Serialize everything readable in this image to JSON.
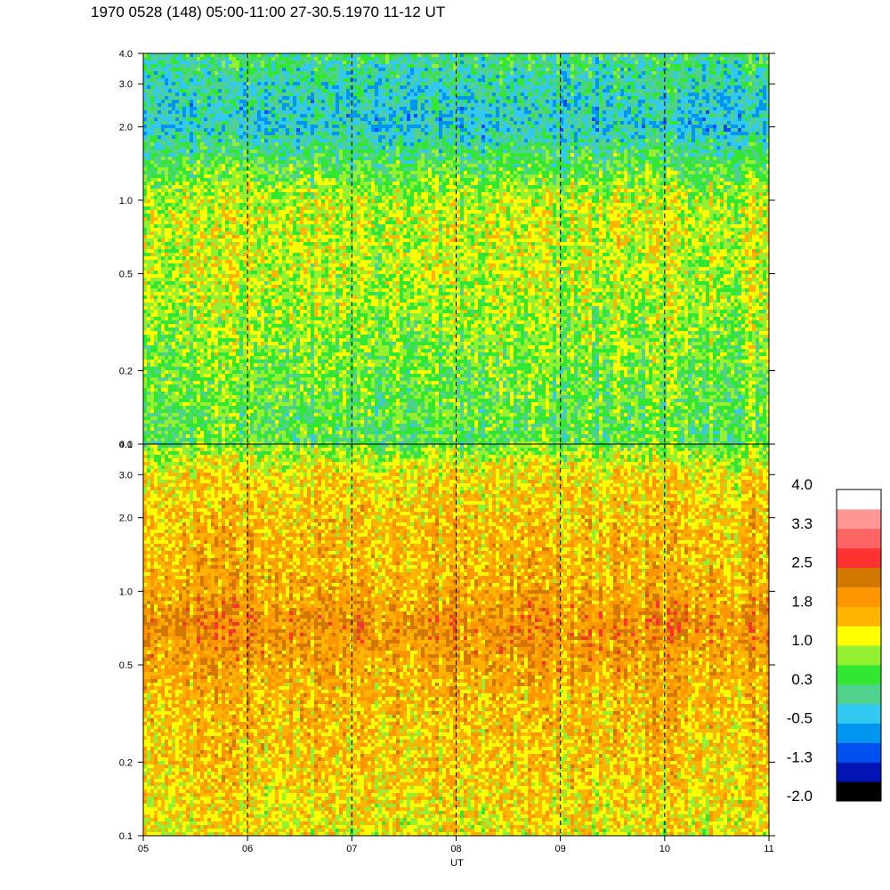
{
  "chart_data": {
    "type": "heatmap",
    "title": "1970 0528 (148) 05:00-11:00 27-30.5.1970  11-12 UT",
    "xlabel": "UT",
    "x_ticks": [
      "05",
      "06",
      "07",
      "08",
      "09",
      "10",
      "11"
    ],
    "x_tick_values": [
      5,
      6,
      7,
      8,
      9,
      10,
      11
    ],
    "xlim": [
      5,
      11
    ],
    "dashed_hours": [
      6,
      7,
      8,
      9,
      10
    ],
    "y_scale": "log",
    "ylim": [
      0.1,
      4.0
    ],
    "y_ticks": [
      "0.1",
      "0.2",
      "0.5",
      "1.0",
      "2.0",
      "3.0",
      "4.0"
    ],
    "y_tick_values": [
      0.1,
      0.2,
      0.5,
      1.0,
      2.0,
      3.0,
      4.0
    ],
    "panels": [
      {
        "name": "upper",
        "profile": [
          {
            "y": 0.1,
            "v": 0.4
          },
          {
            "y": 0.2,
            "v": 0.6
          },
          {
            "y": 0.3,
            "v": 0.75
          },
          {
            "y": 0.5,
            "v": 0.95
          },
          {
            "y": 0.7,
            "v": 1.0
          },
          {
            "y": 1.0,
            "v": 0.95
          },
          {
            "y": 1.5,
            "v": 0.3
          },
          {
            "y": 2.0,
            "v": -0.3
          },
          {
            "y": 3.0,
            "v": -0.1
          },
          {
            "y": 4.0,
            "v": 0.2
          }
        ]
      },
      {
        "name": "lower",
        "profile": [
          {
            "y": 0.1,
            "v": 1.2
          },
          {
            "y": 0.2,
            "v": 1.45
          },
          {
            "y": 0.4,
            "v": 1.6
          },
          {
            "y": 0.6,
            "v": 1.9
          },
          {
            "y": 0.75,
            "v": 2.0
          },
          {
            "y": 1.0,
            "v": 1.7
          },
          {
            "y": 2.0,
            "v": 1.5
          },
          {
            "y": 3.0,
            "v": 1.3
          },
          {
            "y": 4.0,
            "v": 0.6
          }
        ]
      }
    ],
    "colorbar": {
      "labels": [
        "4.0",
        "3.3",
        "2.5",
        "1.8",
        "1.0",
        "0.3",
        "-0.5",
        "-1.3",
        "-2.0"
      ],
      "colors": [
        "#000000",
        "#0014b4",
        "#0050f0",
        "#0096f0",
        "#32c8f0",
        "#50d28c",
        "#32e632",
        "#96f032",
        "#ffff00",
        "#ffb400",
        "#ff9600",
        "#d27800",
        "#ff3232",
        "#ff6464",
        "#ff9696",
        "#ffffff"
      ],
      "vmin": -2.0,
      "vmax": 4.0
    }
  }
}
